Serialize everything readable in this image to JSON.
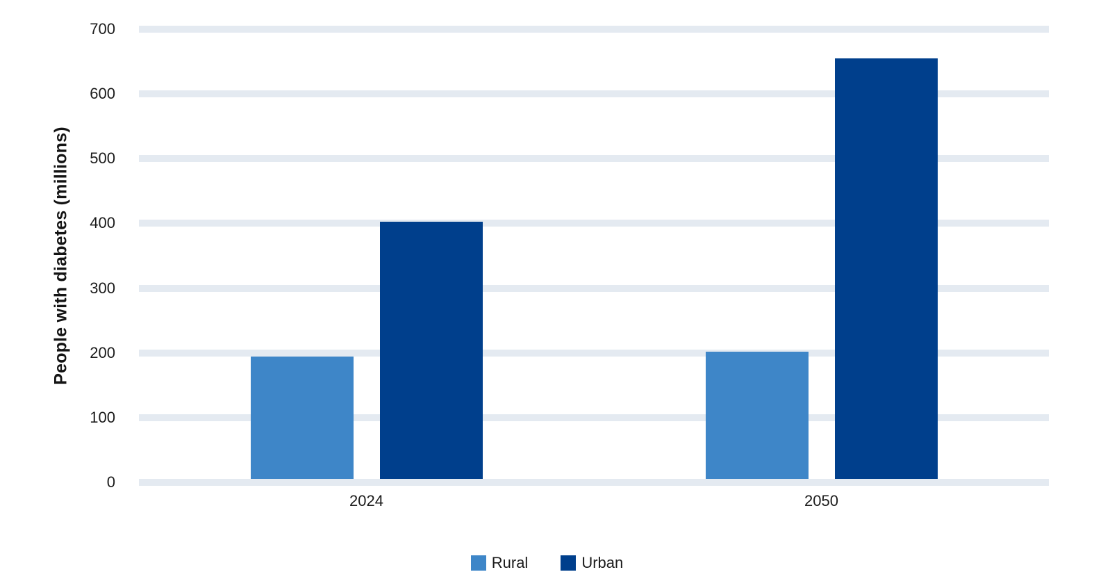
{
  "chart_data": {
    "type": "bar",
    "title": "",
    "categories": [
      "2024",
      "2050"
    ],
    "series": [
      {
        "name": "Rural",
        "color": "#3E86C8",
        "values": [
          190,
          198
        ]
      },
      {
        "name": "Urban",
        "color": "#003F8C",
        "values": [
          400,
          655
        ]
      }
    ],
    "xlabel": "",
    "ylabel": "People with diabetes (millions)",
    "ylim": [
      0,
      700
    ],
    "yticks": [
      0,
      100,
      200,
      300,
      400,
      500,
      600,
      700
    ],
    "grid": "horizontal-bands",
    "gridline_color": "#E4EAF1",
    "background_color": "#FFFFFF",
    "text_color": "#1B1B1B",
    "legend_position": "bottom",
    "legend": [
      "Rural",
      "Urban"
    ]
  }
}
